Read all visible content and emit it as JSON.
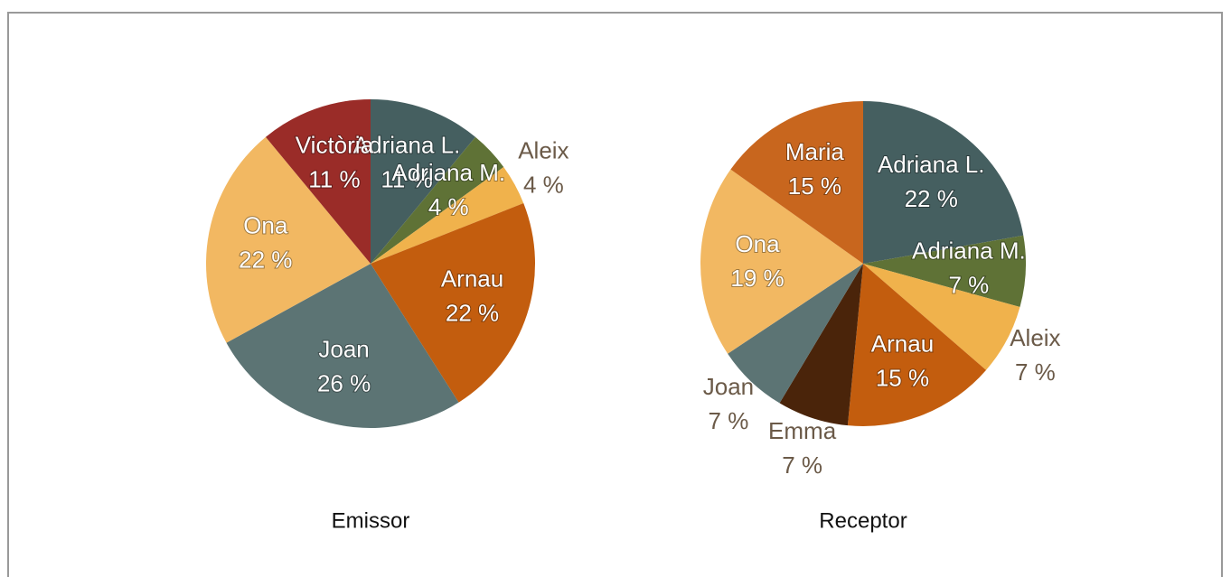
{
  "chart_data": [
    {
      "type": "pie",
      "title": "Emissor",
      "categories": [
        "Adriana L.",
        "Adriana M.",
        "Aleix",
        "Arnau",
        "Joan",
        "Ona",
        "Victòria"
      ],
      "values": [
        11,
        4,
        4,
        22,
        26,
        22,
        11
      ],
      "value_labels": [
        "11 %",
        "4 %",
        "4 %",
        "22 %",
        "26 %",
        "22 %",
        "11 %"
      ],
      "colors": [
        "#455f60",
        "#5f7236",
        "#f0b24c",
        "#c35d0e",
        "#5c7474",
        "#f2b862",
        "#9a2c28"
      ]
    },
    {
      "type": "pie",
      "title": "Receptor",
      "categories": [
        "Adriana L.",
        "Adriana M.",
        "Aleix",
        "Arnau",
        "Emma",
        "Joan",
        "Ona",
        "Maria"
      ],
      "values": [
        22,
        7,
        7,
        15,
        7,
        7,
        19,
        15
      ],
      "value_labels": [
        "22 %",
        "7 %",
        "7 %",
        "15 %",
        "7 %",
        "7 %",
        "19 %",
        "15 %"
      ],
      "colors": [
        "#455f60",
        "#5f7236",
        "#f0b24c",
        "#c35d0e",
        "#4a240a",
        "#5c7474",
        "#f2b862",
        "#c8661e"
      ]
    }
  ]
}
